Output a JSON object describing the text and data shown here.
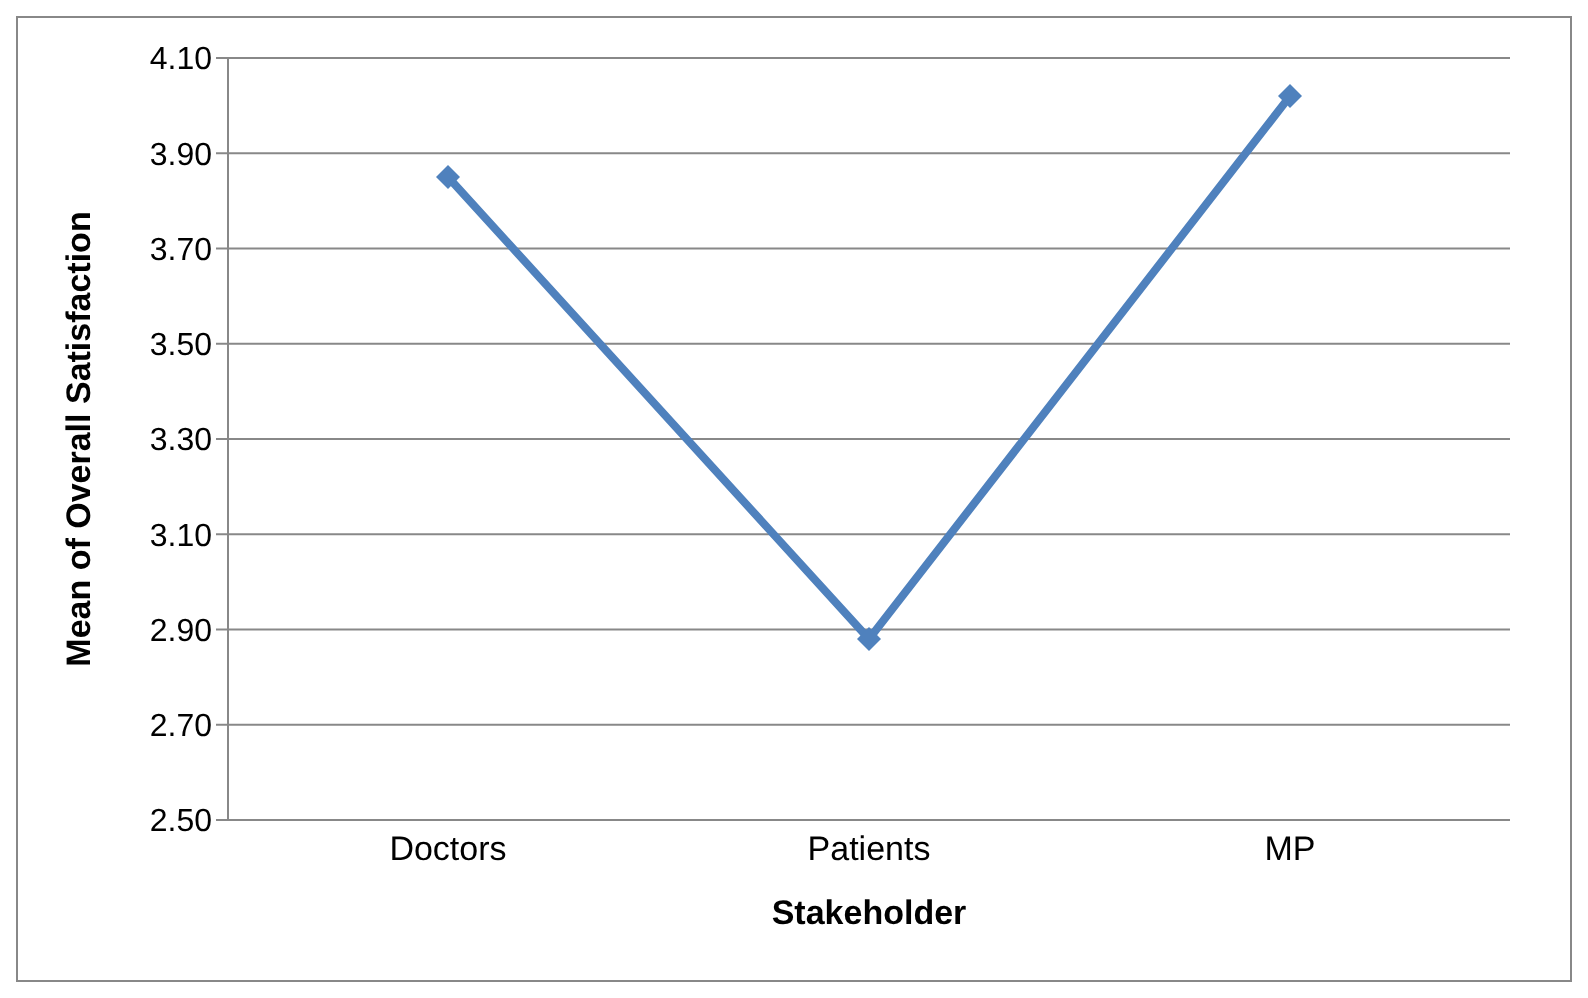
{
  "chart_data": {
    "type": "line",
    "xlabel": "Stakeholder",
    "ylabel": "Mean of Overall Satisfaction",
    "categories": [
      "Doctors",
      "Patients",
      "MP"
    ],
    "series": [
      {
        "color": "#4f81bd",
        "values": [
          3.85,
          2.88,
          4.02
        ]
      }
    ],
    "ylim": [
      2.5,
      4.1
    ],
    "yticks": [
      {
        "value": 2.5,
        "label": "2.50"
      },
      {
        "value": 2.7,
        "label": "2.70"
      },
      {
        "value": 2.9,
        "label": "2.90"
      },
      {
        "value": 3.1,
        "label": "3.10"
      },
      {
        "value": 3.3,
        "label": "3.30"
      },
      {
        "value": 3.5,
        "label": "3.50"
      },
      {
        "value": 3.7,
        "label": "3.70"
      },
      {
        "value": 3.9,
        "label": "3.90"
      },
      {
        "value": 4.1,
        "label": "4.10"
      }
    ],
    "grid": "y",
    "marker": "diamond",
    "line_style": "solid",
    "legend": false
  }
}
